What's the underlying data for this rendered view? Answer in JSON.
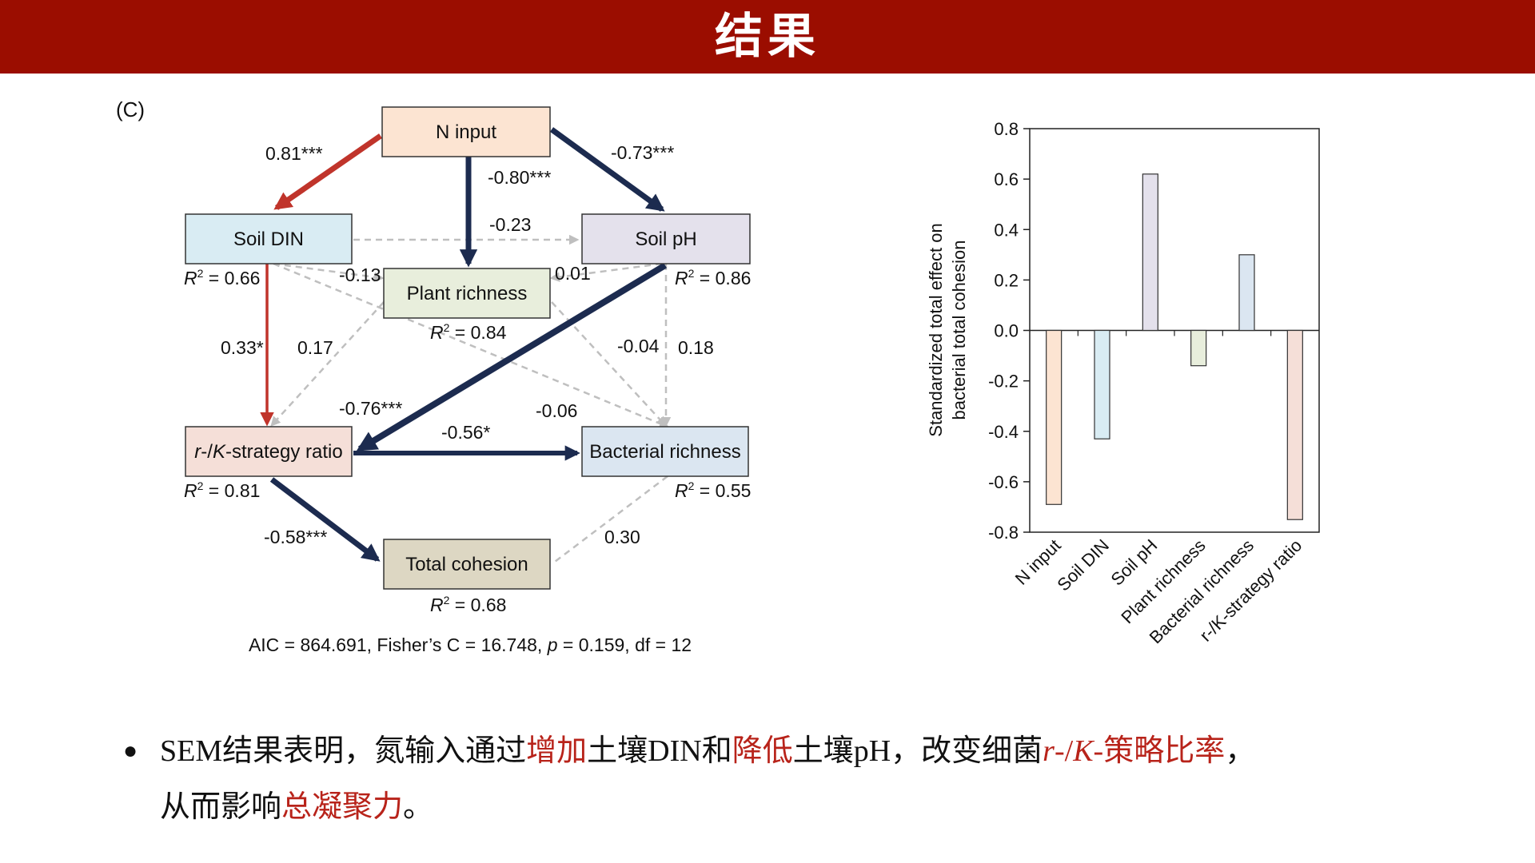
{
  "header": {
    "title": "结果"
  },
  "panel_label": "(C)",
  "sem": {
    "nodes": {
      "n_input": {
        "label": "N input",
        "fill": "#fce4d2"
      },
      "soil_din": {
        "label": "Soil DIN",
        "r2_label": "R",
        "r2_value": " = 0.66",
        "fill": "#d9ecf3"
      },
      "soil_ph": {
        "label": "Soil pH",
        "r2_label": "R",
        "r2_value": " = 0.86",
        "fill": "#e4e1ec"
      },
      "plant_richness": {
        "label": "Plant richness",
        "r2_label": "R",
        "r2_value": " = 0.84",
        "fill": "#e8eedc"
      },
      "rk_ratio": {
        "label_italic1": "r",
        "label_sep": "-/",
        "label_italic2": "K",
        "label_rest": "-strategy ratio",
        "r2_label": "R",
        "r2_value": " = 0.81",
        "fill": "#f5dfd8"
      },
      "bacterial_richness": {
        "label": "Bacterial richness",
        "r2_label": "R",
        "r2_value": " = 0.55",
        "fill": "#dbe6f1"
      },
      "total_cohesion": {
        "label": "Total cohesion",
        "r2_label": "R",
        "r2_value": " = 0.68",
        "fill": "#ddd7c3"
      }
    },
    "r2_superscript": "2",
    "paths": {
      "n_to_din": "0.81***",
      "n_to_plant": "-0.80***",
      "n_to_ph": "-0.73***",
      "din_to_ph": "-0.23",
      "din_to_plant": "-0.13",
      "ph_to_plant": "0.01",
      "din_to_rk": "0.33*",
      "plant_to_rk": "0.17",
      "plant_to_bact": "-0.04",
      "ph_to_bact": "0.18",
      "ph_to_rk": "-0.76***",
      "din_to_bact": "-0.06",
      "rk_to_bact": "-0.56*",
      "rk_to_cohesion": "-0.58***",
      "bact_to_cohesion": "0.30"
    },
    "fit": {
      "prefix": "AIC = 864.691, Fisher’s C = 16.748, ",
      "p_symbol": "p",
      "suffix": " = 0.159, df = 12"
    },
    "colors": {
      "positive": "#c0342b",
      "negative": "#1c2b4f",
      "nonsig": "#bfbfbf"
    }
  },
  "chart_data": {
    "type": "bar",
    "ylabel": "Standardized total effect on bacterial total cohesion",
    "ylabel_lines": [
      "Standardized total effect on",
      "bacterial total cohesion"
    ],
    "ylim": [
      -0.8,
      0.8
    ],
    "yticks": [
      "0.8",
      "0.6",
      "0.4",
      "0.2",
      "0.0",
      "-0.2",
      "-0.4",
      "-0.6",
      "-0.8"
    ],
    "categories": [
      "N input",
      "Soil DIN",
      "Soil pH",
      "Plant richness",
      "Bacterial richness",
      "r-/K-strategy ratio"
    ],
    "values": [
      -0.69,
      -0.43,
      0.62,
      -0.14,
      0.3,
      -0.75
    ],
    "colors": [
      "#fce4d2",
      "#d9ecf3",
      "#e4e1ec",
      "#e8eedc",
      "#dbe6f1",
      "#f5dfd8"
    ],
    "grid": false
  },
  "bullet": {
    "line1": [
      {
        "text": "SEM结果表明，氮输入通过",
        "red": false,
        "italic": false
      },
      {
        "text": "增加",
        "red": true,
        "italic": false
      },
      {
        "text": "土壤DIN和",
        "red": false,
        "italic": false
      },
      {
        "text": "降低",
        "red": true,
        "italic": false
      },
      {
        "text": "土壤pH，改变细菌",
        "red": false,
        "italic": false
      },
      {
        "text": "r",
        "red": true,
        "italic": true
      },
      {
        "text": "-/",
        "red": true,
        "italic": false
      },
      {
        "text": "K",
        "red": true,
        "italic": true
      },
      {
        "text": "-策略比率",
        "red": true,
        "italic": false
      },
      {
        "text": "，",
        "red": false,
        "italic": false
      }
    ],
    "line2": [
      {
        "text": "从而影响",
        "red": false,
        "italic": false
      },
      {
        "text": "总凝聚力",
        "red": true,
        "italic": false
      },
      {
        "text": "。",
        "red": false,
        "italic": false
      }
    ]
  }
}
